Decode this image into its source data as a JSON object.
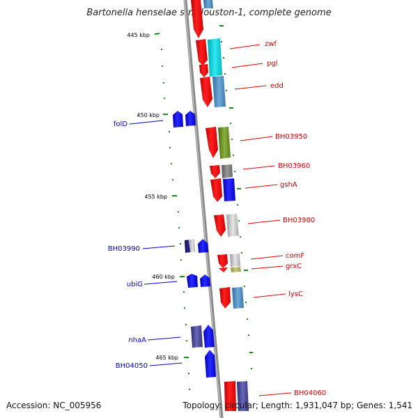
{
  "title": "Bartonella henselae str. Houston-1, complete genome",
  "footer": {
    "accession": "Accession: NC_005956",
    "summary": "Topology: circular; Length: 1,931,047 bp; Genes: 1,541"
  },
  "colors": {
    "backbone": "#888888",
    "tick": "#1a8a1a",
    "forward_gene": "#ee0000",
    "reverse_gene": "#0000ee",
    "label_forward": "#d00000",
    "label_reverse": "#0000cc"
  },
  "kbp_markers": [
    "445 kbp",
    "450 kbp",
    "455 kbp",
    "460 kbp",
    "465 kbp"
  ],
  "labels_right": [
    "zwf",
    "pgl",
    "edd",
    "BH03950",
    "BH03960",
    "gshA",
    "BH03980",
    "comF",
    "grxC",
    "lysC",
    "BH04060"
  ],
  "labels_left": [
    "folD",
    "BH03990",
    "ubiG",
    "nhaA",
    "BH04050"
  ]
}
